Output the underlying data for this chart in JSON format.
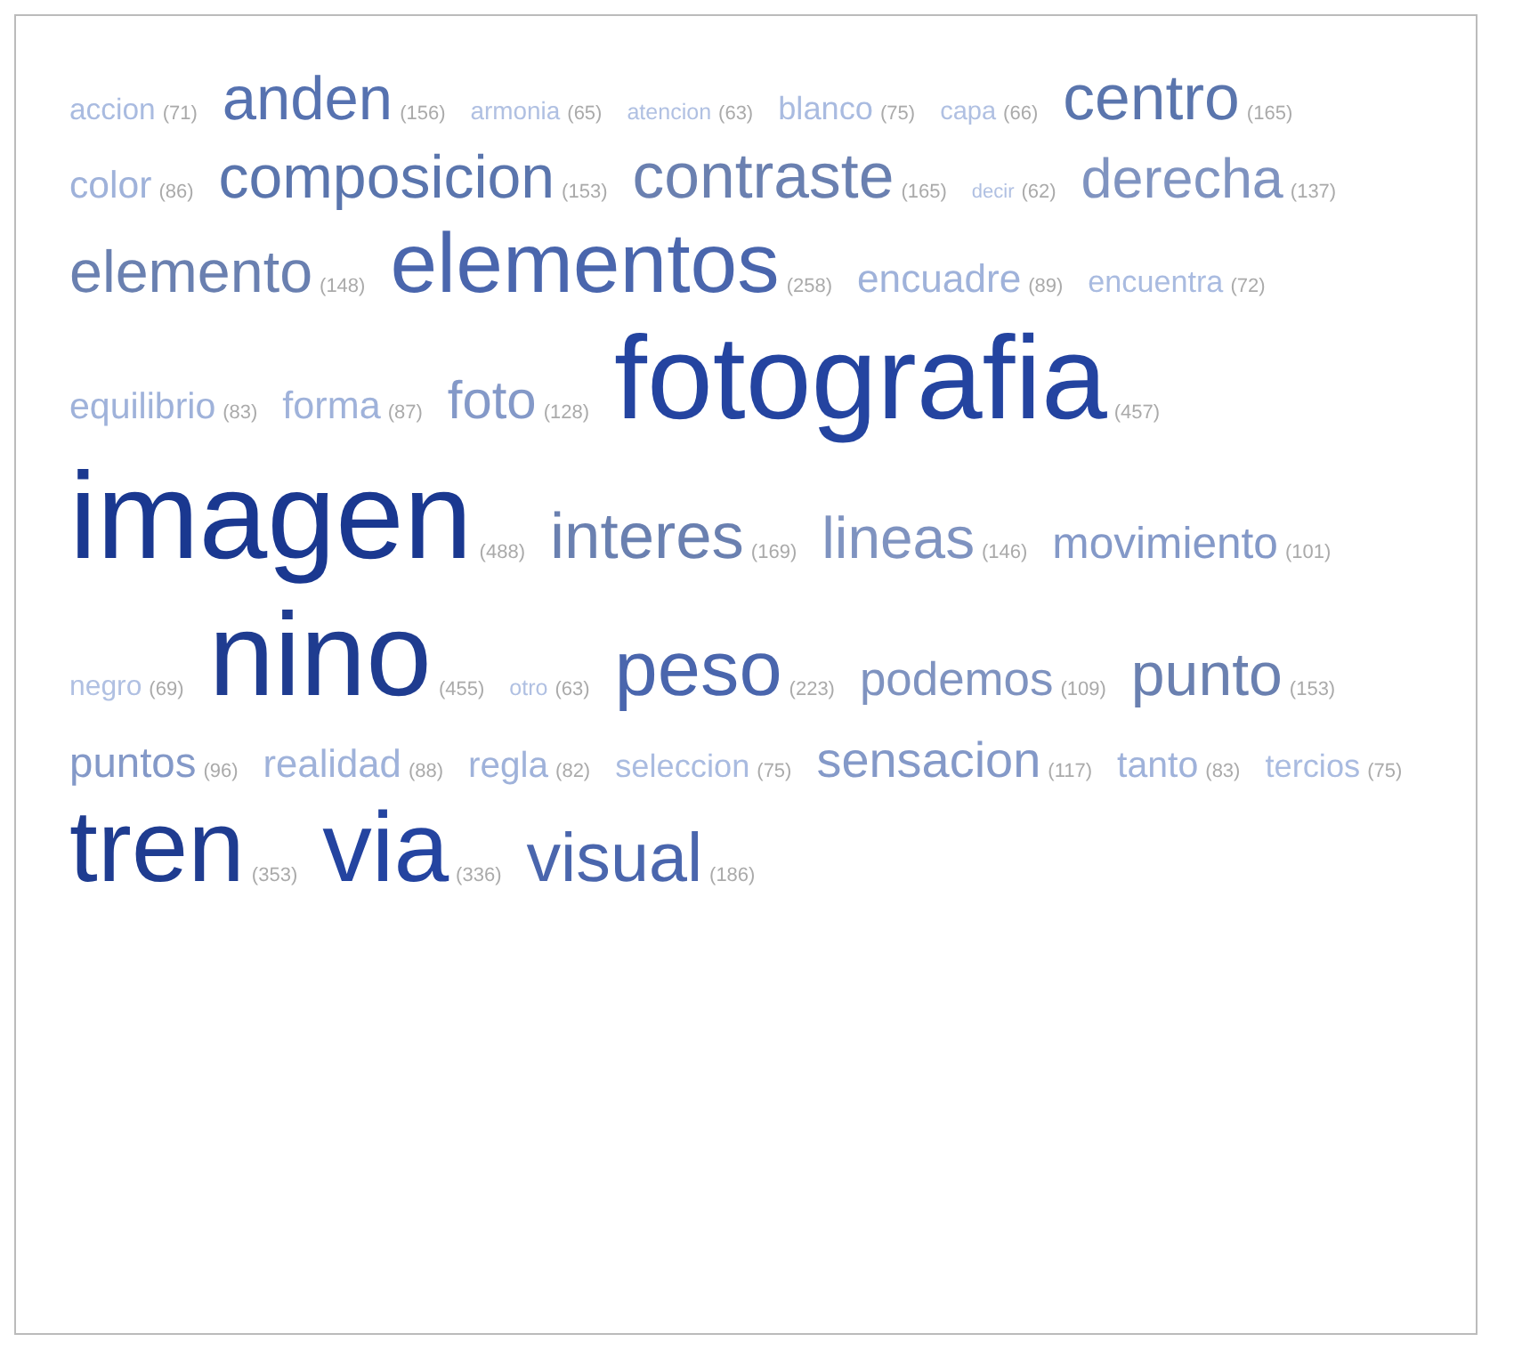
{
  "chart_data": {
    "type": "other",
    "value_labels": [
      "(71)",
      "(156)",
      "(65)",
      "(63)",
      "(75)",
      "(66)",
      "(165)",
      "(86)",
      "(153)",
      "(165)",
      "(62)",
      "(137)",
      "(148)",
      "(258)",
      "(89)",
      "(72)",
      "(83)",
      "(87)",
      "(128)",
      "(457)",
      "(488)",
      "(169)",
      "(146)",
      "(101)",
      "(69)",
      "(455)",
      "(63)",
      "(223)",
      "(109)",
      "(153)",
      "(96)",
      "(88)",
      "(82)",
      "(75)",
      "(117)",
      "(83)",
      "(75)",
      "(353)",
      "(336)",
      "(186)"
    ],
    "categories": [
      "accion",
      "anden",
      "armonia",
      "atencion",
      "blanco",
      "capa",
      "centro",
      "color",
      "composicion",
      "contraste",
      "decir",
      "derecha",
      "elemento",
      "elementos",
      "encuadre",
      "encuentra",
      "equilibrio",
      "forma",
      "foto",
      "fotografia",
      "imagen",
      "interes",
      "lineas",
      "movimiento",
      "negro",
      "nino",
      "otro",
      "peso",
      "podemos",
      "punto",
      "puntos",
      "realidad",
      "regla",
      "seleccion",
      "sensacion",
      "tanto",
      "tercios",
      "tren",
      "via",
      "visual"
    ],
    "values": [
      71,
      156,
      65,
      63,
      75,
      66,
      165,
      86,
      153,
      165,
      62,
      137,
      148,
      258,
      89,
      72,
      83,
      87,
      128,
      457,
      488,
      169,
      146,
      101,
      69,
      455,
      63,
      223,
      109,
      153,
      96,
      88,
      82,
      75,
      117,
      83,
      75,
      353,
      336,
      186
    ],
    "colors": [
      "#a9bbe0",
      "#5672b0",
      "#b0c0e2",
      "#b0c0e2",
      "#a9bbe0",
      "#b0c0e2",
      "#5a75ad",
      "#9fb2da",
      "#5a75ad",
      "#6a80b0",
      "#b0c0e2",
      "#7f93c0",
      "#6a80b0",
      "#4a66ad",
      "#9fb2da",
      "#a9bbe0",
      "#9fb2da",
      "#9fb2da",
      "#8499c8",
      "#2444a0",
      "#1a3890",
      "#6a80b0",
      "#7f93c0",
      "#8499c8",
      "#b0c0e2",
      "#1f3c90",
      "#b0c0e2",
      "#4a66ad",
      "#7f93c0",
      "#6a80b0",
      "#8499c8",
      "#9fb2da",
      "#9fb2da",
      "#a9bbe0",
      "#8499c8",
      "#9fb2da",
      "#a9bbe0",
      "#1f3c90",
      "#2444a0",
      "#4a66ad"
    ]
  }
}
